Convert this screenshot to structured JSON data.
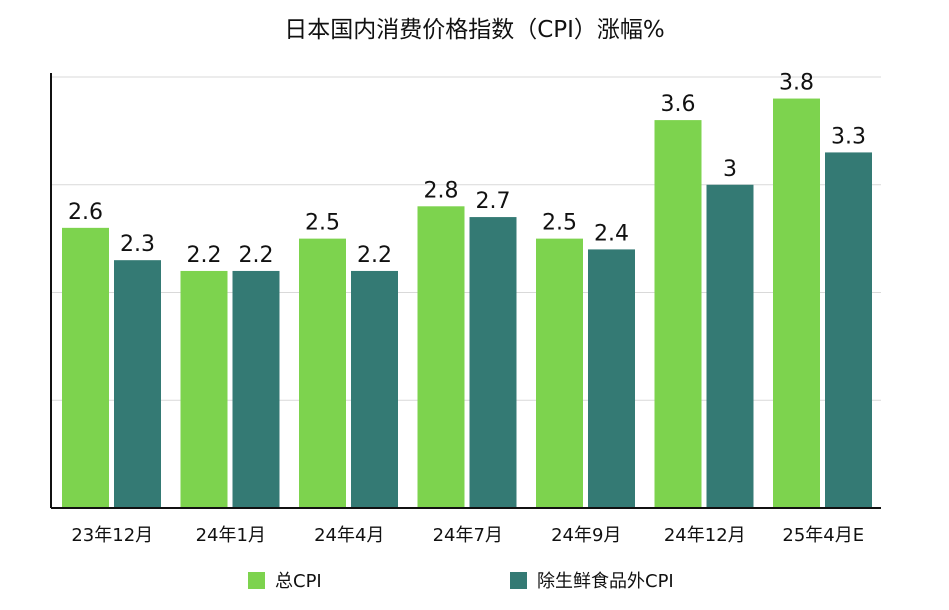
{
  "chart_data": {
    "type": "bar",
    "title": "日本国内消费价格指数（CPI）涨幅%",
    "categories": [
      "23年12月",
      "24年1月",
      "24年4月",
      "24年7月",
      "24年9月",
      "24年12月",
      "25年4月E"
    ],
    "series": [
      {
        "name": "总CPI",
        "color": "#7dd34e",
        "values": [
          2.6,
          2.2,
          2.5,
          2.8,
          2.5,
          3.6,
          3.8
        ],
        "labels": [
          "2.6",
          "2.2",
          "2.5",
          "2.8",
          "2.5",
          "3.6",
          "3.8"
        ]
      },
      {
        "name": "除生鲜食品外CPI",
        "color": "#347a74",
        "values": [
          2.3,
          2.2,
          2.2,
          2.7,
          2.4,
          3.0,
          3.3
        ],
        "labels": [
          "2.3",
          "2.2",
          "2.2",
          "2.7",
          "2.4",
          "3",
          "3.3"
        ]
      }
    ],
    "ylim": [
      0,
      4
    ],
    "grid": true,
    "legend_position": "bottom",
    "xlabel": "",
    "ylabel": ""
  }
}
